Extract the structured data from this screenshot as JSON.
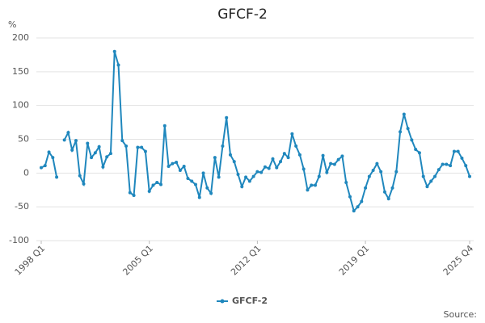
{
  "chart_data": {
    "type": "line",
    "title": "GFCF-2",
    "y_unit": "%",
    "source": "Source:",
    "categories": [
      "1998 Q1",
      null,
      null,
      null,
      null,
      null,
      null,
      null,
      null,
      null,
      null,
      null,
      null,
      null,
      null,
      null,
      null,
      null,
      null,
      null,
      null,
      null,
      null,
      null,
      null,
      null,
      null,
      null,
      "2005 Q1",
      null,
      null,
      null,
      null,
      null,
      null,
      null,
      null,
      null,
      null,
      null,
      null,
      null,
      null,
      null,
      null,
      null,
      null,
      null,
      null,
      null,
      null,
      null,
      null,
      null,
      null,
      null,
      "2012 Q1",
      null,
      null,
      null,
      null,
      null,
      null,
      null,
      null,
      null,
      null,
      null,
      null,
      null,
      null,
      null,
      null,
      null,
      null,
      null,
      null,
      null,
      null,
      null,
      null,
      null,
      null,
      null,
      "2019 Q1",
      null,
      null,
      null,
      null,
      null,
      null,
      null,
      null,
      null,
      null,
      null,
      null,
      null,
      null,
      null,
      null,
      null,
      null,
      null,
      null,
      null,
      null,
      null,
      null,
      null,
      null,
      "2025 Q4"
    ],
    "series": [
      {
        "name": "GFCF-2",
        "color": "#1f87bd",
        "values": [
          8,
          11,
          31,
          23,
          -6,
          null,
          49,
          60,
          34,
          48,
          -4,
          -16,
          44,
          23,
          30,
          39,
          9,
          24,
          29,
          180,
          160,
          48,
          40,
          -29,
          -33,
          38,
          38,
          32,
          -27,
          -18,
          -14,
          -17,
          70,
          10,
          14,
          16,
          4,
          10,
          -8,
          -12,
          -17,
          -36,
          0,
          -22,
          -30,
          23,
          -6,
          40,
          82,
          27,
          17,
          -2,
          -20,
          -6,
          -12,
          -5,
          2,
          1,
          9,
          7,
          21,
          8,
          17,
          29,
          23,
          58,
          40,
          27,
          6,
          -25,
          -18,
          -18,
          -5,
          26,
          1,
          14,
          13,
          20,
          25,
          -14,
          -35,
          -56,
          -50,
          -42,
          -22,
          -5,
          4,
          14,
          2,
          -28,
          -38,
          -22,
          2,
          61,
          87,
          66,
          49,
          35,
          30,
          -5,
          -20,
          -12,
          -5,
          5,
          13,
          13,
          11,
          32,
          32,
          22,
          11,
          -5
        ]
      }
    ],
    "ylim": [
      -100,
      200
    ],
    "yticks": [
      -100,
      -50,
      0,
      50,
      100,
      150,
      200
    ],
    "grid": true
  }
}
